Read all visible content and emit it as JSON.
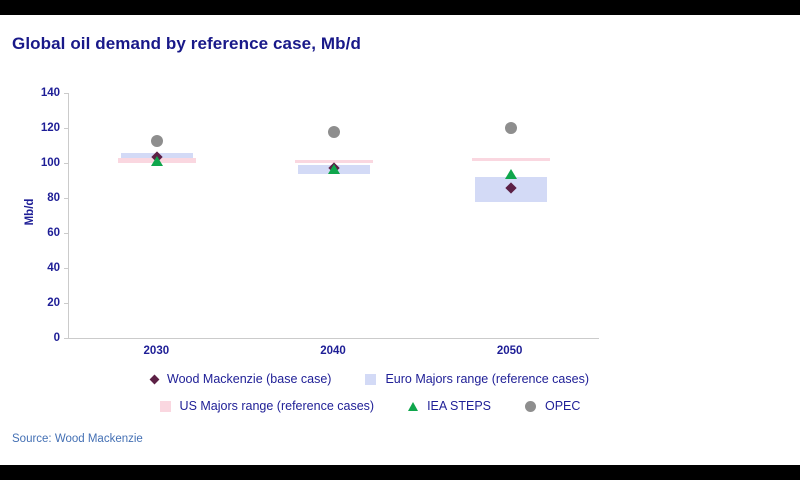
{
  "source": {
    "text": "Source: Wood Mackenzie"
  },
  "colors": {
    "frame_bar": "#000000",
    "title_text": "#191989",
    "axis_text": "#1e1e96",
    "source_text": "#4470b4",
    "spine": "#cbcbcb"
  },
  "chart_data": {
    "type": "scatter",
    "title": "Global oil demand by reference case, Mb/d",
    "xlabel": "",
    "ylabel": "Mb/d",
    "ylim": [
      0,
      140
    ],
    "yticks": [
      0,
      20,
      40,
      60,
      80,
      100,
      120,
      140
    ],
    "categories": [
      "2030",
      "2040",
      "2050"
    ],
    "grid": false,
    "legend_position": "bottom",
    "series": [
      {
        "name": "Wood Mackenzie (base case)",
        "slug": "wood-mackenzie-base-case",
        "marker": "diamond",
        "color": "#5c2045",
        "values": [
          103.5,
          97,
          86
        ]
      },
      {
        "name": "Euro Majors range (reference cases)",
        "slug": "euro-majors-range",
        "marker": "band",
        "color": "#d3daf6",
        "band_width": 72,
        "ranges": [
          [
            103,
            105.5
          ],
          [
            93.5,
            99
          ],
          [
            78,
            92
          ]
        ]
      },
      {
        "name": "US Majors range (reference cases)",
        "slug": "us-majors-range",
        "marker": "band",
        "color": "#fad7e0",
        "band_width": 78,
        "ranges": [
          [
            100,
            103
          ],
          [
            100,
            101.5
          ],
          [
            101,
            103
          ]
        ]
      },
      {
        "name": "IEA STEPS",
        "slug": "iea-steps",
        "marker": "triangle",
        "color": "#0fa64c",
        "values": [
          101,
          96.5,
          93.5
        ]
      },
      {
        "name": "OPEC",
        "slug": "opec",
        "marker": "circle",
        "color": "#8e8e8e",
        "values": [
          112.5,
          117.5,
          120
        ]
      }
    ],
    "legend_rows": [
      [
        "wood-mackenzie-base-case",
        "euro-majors-range"
      ],
      [
        "us-majors-range",
        "iea-steps",
        "opec"
      ]
    ]
  }
}
